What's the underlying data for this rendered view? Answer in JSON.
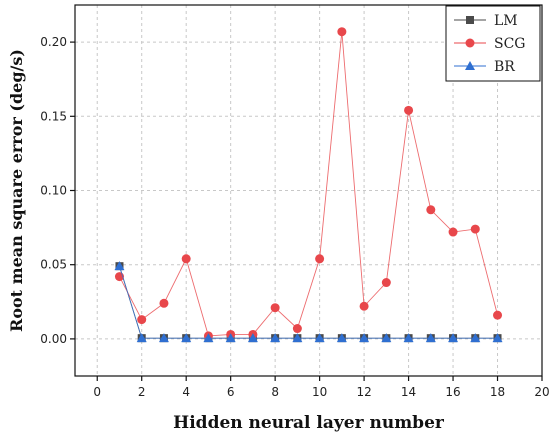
{
  "chart_data": {
    "type": "line",
    "title": "",
    "xlabel": "Hidden neural layer number",
    "ylabel": "Root mean square error (deg/s)",
    "xlim": [
      -1,
      20
    ],
    "ylim": [
      -0.025,
      0.225
    ],
    "xticks": [
      0,
      2,
      4,
      6,
      8,
      10,
      12,
      14,
      16,
      18,
      20
    ],
    "yticks": [
      0.0,
      0.05,
      0.1,
      0.15,
      0.2
    ],
    "ytick_labels": [
      "0.00",
      "0.05",
      "0.10",
      "0.15",
      "0.20"
    ],
    "grid": true,
    "legend_position": "top-right",
    "x": [
      1,
      2,
      3,
      4,
      5,
      6,
      7,
      8,
      9,
      10,
      11,
      12,
      13,
      14,
      15,
      16,
      17,
      18
    ],
    "series": [
      {
        "name": "LM",
        "color": "#4a4a4a",
        "marker": "square",
        "values": [
          0.049,
          0.0005,
          0.0005,
          0.0005,
          0.0005,
          0.0005,
          0.0005,
          0.0005,
          0.0005,
          0.0005,
          0.0005,
          0.0005,
          0.0005,
          0.0005,
          0.0005,
          0.0005,
          0.0005,
          0.0005
        ]
      },
      {
        "name": "SCG",
        "color": "#e8474b",
        "marker": "circle",
        "values": [
          0.042,
          0.013,
          0.024,
          0.054,
          0.002,
          0.003,
          0.003,
          0.021,
          0.007,
          0.054,
          0.207,
          0.022,
          0.038,
          0.154,
          0.087,
          0.072,
          0.074,
          0.016
        ]
      },
      {
        "name": "BR",
        "color": "#2f6fd1",
        "marker": "triangle",
        "values": [
          0.049,
          0.0005,
          0.0005,
          0.0005,
          0.0005,
          0.0005,
          0.0005,
          0.0005,
          0.0005,
          0.0005,
          0.0005,
          0.0005,
          0.0005,
          0.0005,
          0.0005,
          0.0005,
          0.0005,
          0.0005
        ]
      }
    ]
  }
}
